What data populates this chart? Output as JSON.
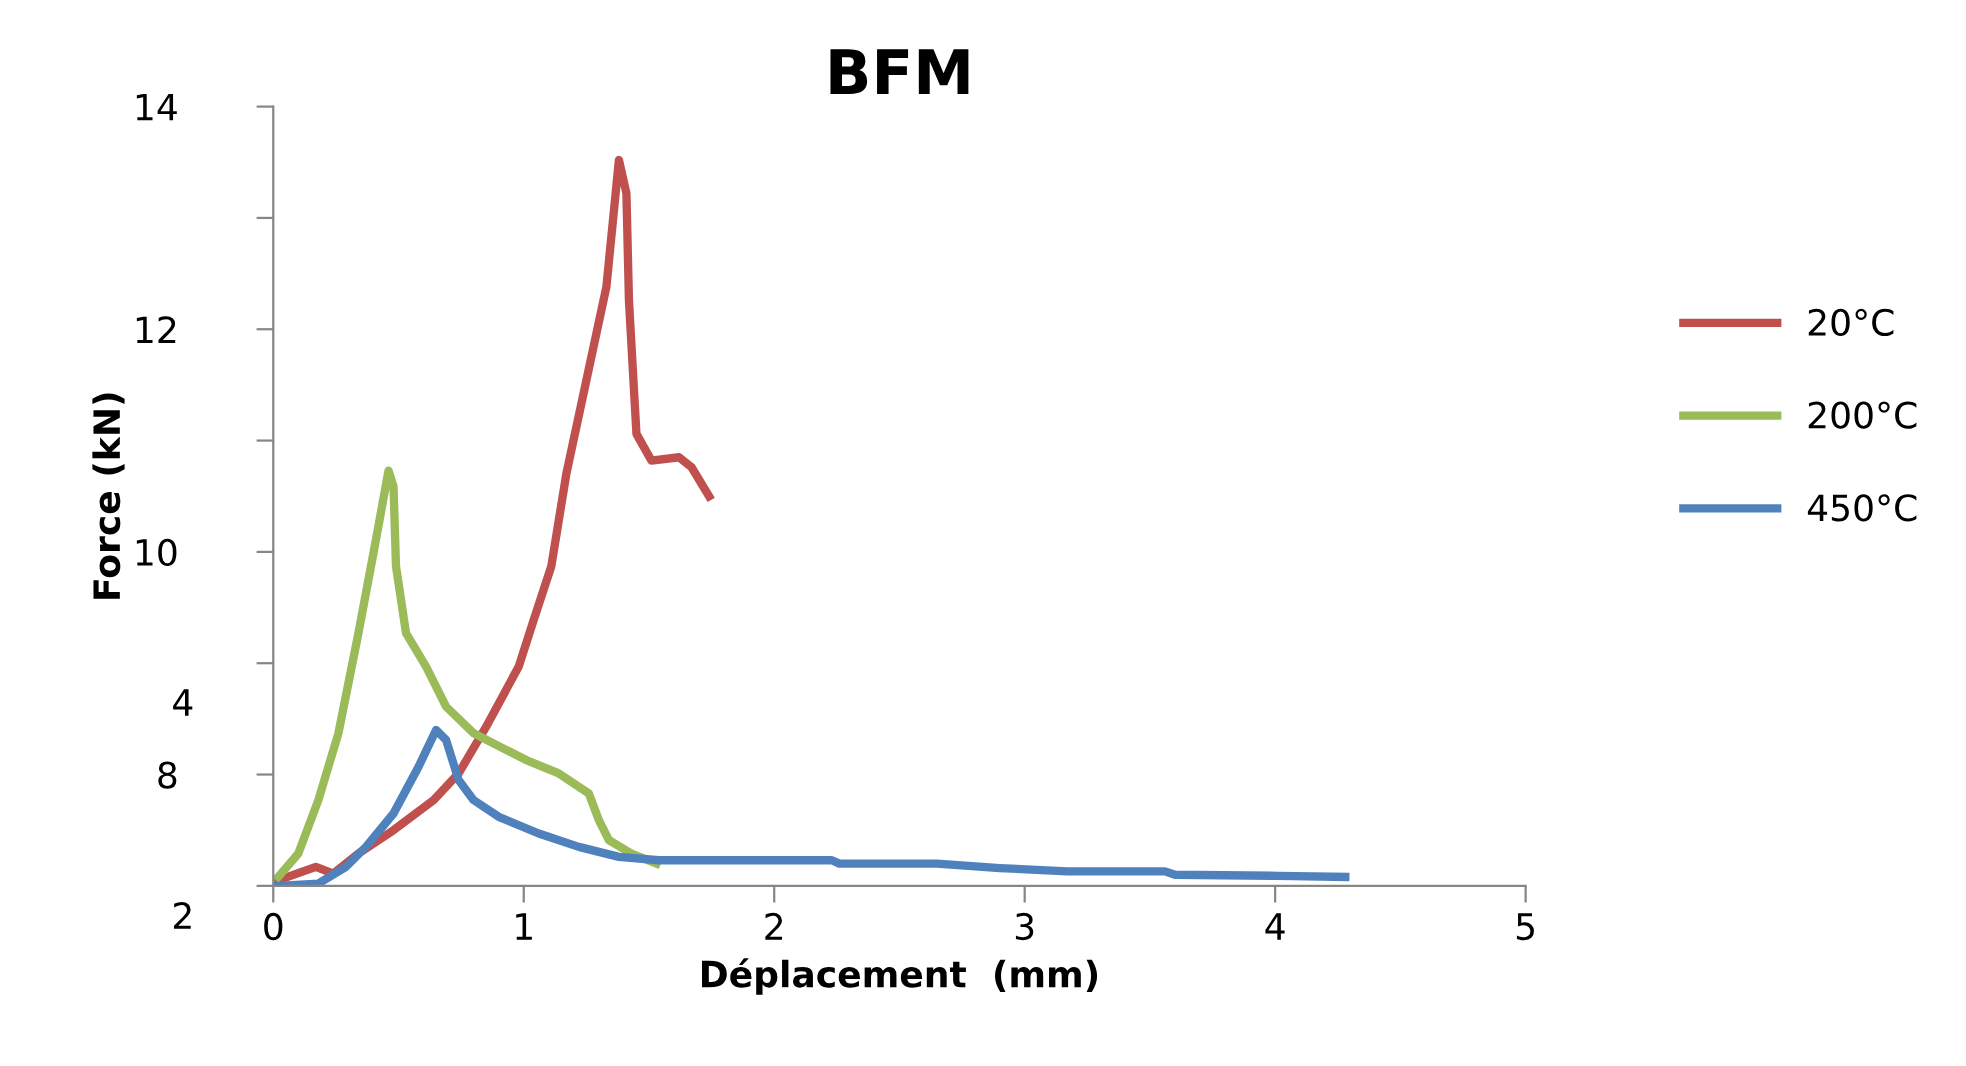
{
  "chart_data": {
    "type": "line",
    "title": "BFM",
    "xlabel": "Déplacement  (mm)",
    "ylabel": "Force (kN)",
    "xlim": [
      0,
      5
    ],
    "xticks": [
      0,
      1,
      2,
      3,
      4,
      5
    ],
    "ylim": [
      7,
      14
    ],
    "yticks": [
      14,
      {
        "value": 13,
        "label": null
      },
      12,
      {
        "value": 11,
        "label": null
      },
      10,
      {
        "value": 9,
        "label": null
      },
      8,
      {
        "value": 7,
        "label": null
      }
    ],
    "grid": false,
    "legend": "right",
    "marker": "none",
    "line_style": "solid",
    "annotations": [
      "4",
      "2"
    ],
    "series": [
      {
        "name": "20°C",
        "color": "#c0504d",
        "x": [
          0.02,
          0.17,
          0.24,
          0.34,
          0.48,
          0.64,
          0.74,
          0.85,
          0.98,
          1.04,
          1.11,
          1.17,
          1.25,
          1.33,
          1.38,
          1.41,
          1.42,
          1.45,
          1.51,
          1.62,
          1.67,
          1.74
        ],
        "values": [
          7.05,
          7.17,
          7.11,
          7.29,
          7.5,
          7.77,
          8.01,
          8.43,
          8.97,
          9.39,
          9.87,
          10.7,
          11.54,
          12.38,
          13.52,
          13.22,
          12.26,
          11.06,
          10.82,
          10.85,
          10.76,
          10.5
        ]
      },
      {
        "name": "200°C",
        "color": "#9bbb59",
        "x": [
          0.02,
          0.1,
          0.18,
          0.26,
          0.34,
          0.41,
          0.46,
          0.48,
          0.49,
          0.53,
          0.61,
          0.65,
          0.69,
          0.8,
          1.01,
          1.14,
          1.26,
          1.3,
          1.34,
          1.43,
          1.53
        ],
        "values": [
          7.08,
          7.29,
          7.77,
          8.37,
          9.27,
          10.11,
          10.73,
          10.59,
          9.87,
          9.27,
          8.97,
          8.79,
          8.61,
          8.37,
          8.13,
          8.01,
          7.83,
          7.59,
          7.41,
          7.29,
          7.2
        ]
      },
      {
        "name": "450°C",
        "color": "#4f81bd",
        "x": [
          0.02,
          0.18,
          0.29,
          0.37,
          0.48,
          0.58,
          0.65,
          0.69,
          0.74,
          0.8,
          0.9,
          1.06,
          1.22,
          1.38,
          1.54,
          1.7,
          2.23,
          2.26,
          2.65,
          2.9,
          3.17,
          3.56,
          3.6,
          4.01,
          4.28
        ],
        "values": [
          7.0,
          7.02,
          7.17,
          7.35,
          7.65,
          8.07,
          8.4,
          8.31,
          7.95,
          7.77,
          7.62,
          7.47,
          7.35,
          7.26,
          7.23,
          7.23,
          7.23,
          7.2,
          7.2,
          7.16,
          7.13,
          7.13,
          7.1,
          7.09,
          7.08
        ]
      }
    ]
  }
}
